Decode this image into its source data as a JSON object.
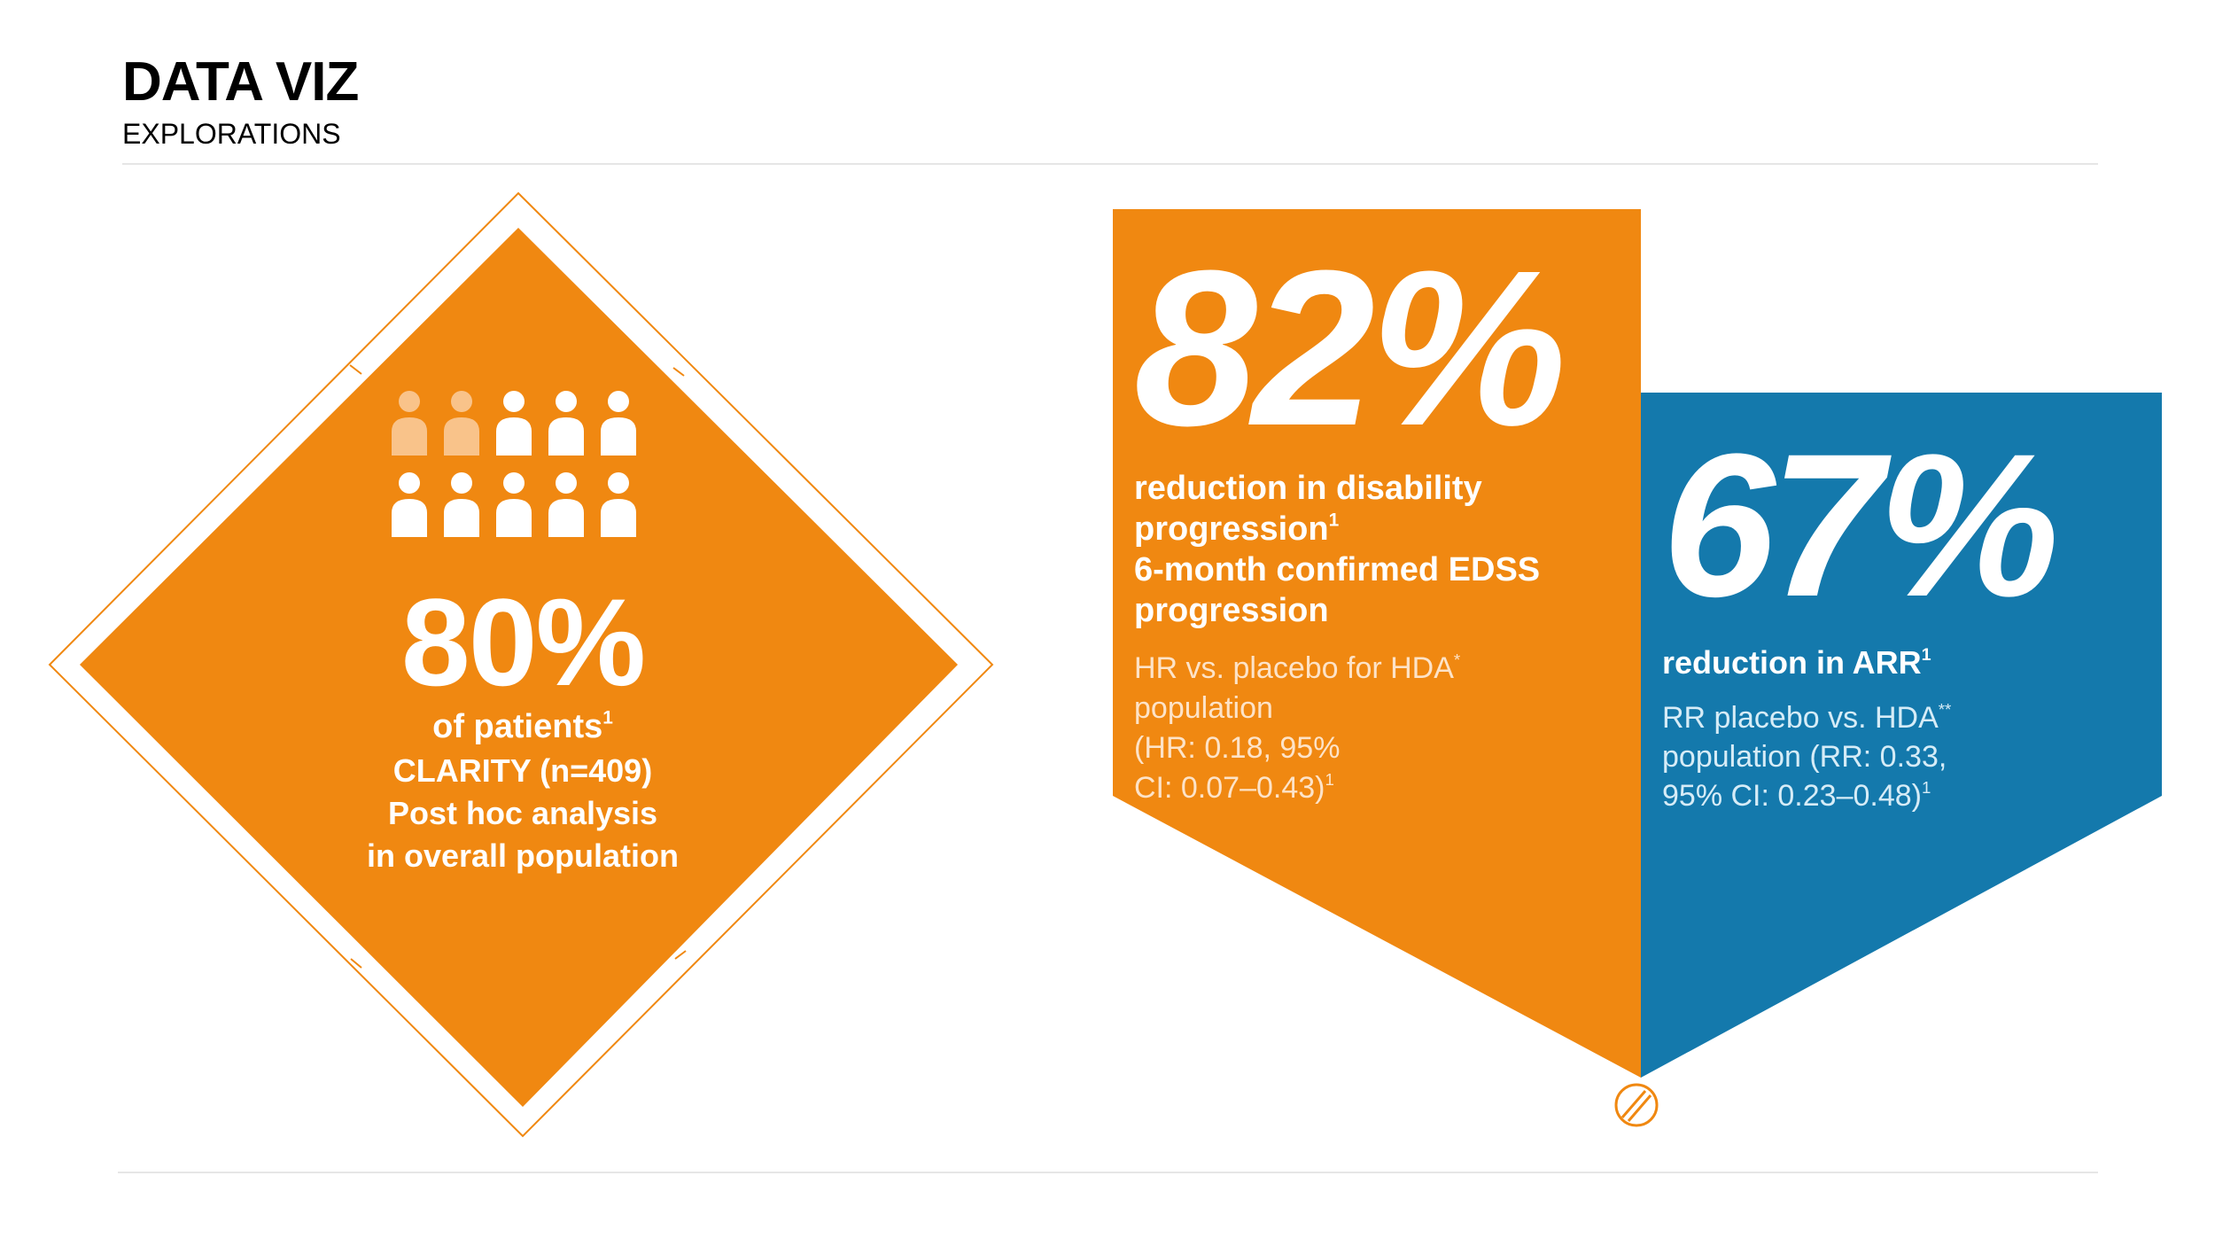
{
  "header": {
    "title": "DATA VIZ",
    "subtitle": "EXPLORATIONS"
  },
  "colors": {
    "orange": "#F08811",
    "orange_light": "#F9C38A",
    "blue": "#1479AC",
    "white": "#FFFFFF"
  },
  "icons": {
    "people": "person-icon",
    "pill": "pill-icon"
  },
  "people_grid": {
    "highlighted": 2,
    "total": 10
  },
  "card_80": {
    "value": "80%",
    "label": "of patients",
    "label_ref": "1",
    "line1": "CLARITY (n=409)",
    "line2": "Post hoc analysis",
    "line3": "in overall population"
  },
  "card_82": {
    "value": "82%",
    "label_line1": "reduction in disability",
    "label_line2": "progression",
    "label_ref": "1",
    "label_line3": "6-month confirmed EDSS",
    "label_line4": "progression",
    "detail_line1": "HR vs. placebo for HDA",
    "detail_ref1": "*",
    "detail_line2": "population",
    "detail_line3": "(HR: 0.18, 95%",
    "detail_line4": "CI: 0.07–0.43)",
    "detail_ref2": "1"
  },
  "card_67": {
    "value": "67%",
    "label": "reduction in ARR",
    "label_ref": "1",
    "detail_line1": "RR placebo vs. HDA",
    "detail_ref1": "**",
    "detail_line2": "population (RR: 0.33,",
    "detail_line3": "95% CI: 0.23–0.48)",
    "detail_ref2": "1"
  }
}
